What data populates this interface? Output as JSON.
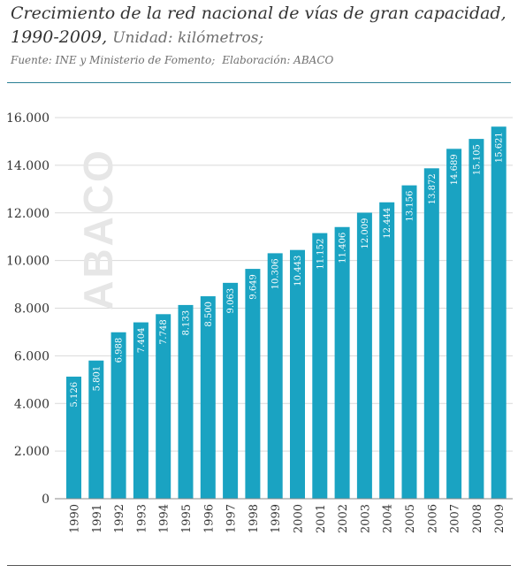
{
  "header": {
    "title": "Crecimiento de la red nacional de vías de gran capacidad, 1990-2009,",
    "unit": "Unidad: kilómetros;",
    "source": "Fuente: INE y Ministerio de Fomento;",
    "elaboration": "Elaboración: ABACO"
  },
  "watermark": "ABACO",
  "colors": {
    "bar": "#1aa3c2",
    "bar_label": "#ffffff",
    "grid": "#d9d9d9",
    "text": "#333333"
  },
  "chart_data": {
    "type": "bar",
    "categories": [
      "1990",
      "1991",
      "1992",
      "1993",
      "1994",
      "1995",
      "1996",
      "1997",
      "1998",
      "1999",
      "2000",
      "2001",
      "2002",
      "2003",
      "2004",
      "2005",
      "2006",
      "2007",
      "2008",
      "2009"
    ],
    "values": [
      5126,
      5801,
      6988,
      7404,
      7748,
      8133,
      8500,
      9063,
      9649,
      10306,
      10443,
      11152,
      11406,
      12009,
      12444,
      13156,
      13872,
      14689,
      15105,
      15621
    ],
    "value_labels": [
      "5.126",
      "5.801",
      "6.988",
      "7.404",
      "7.748",
      "8.133",
      "8.500",
      "9.063",
      "9.649",
      "10.306",
      "10.443",
      "11.152",
      "11.406",
      "12.009",
      "12.444",
      "13.156",
      "13.872",
      "14.689",
      "15.105",
      "15.621"
    ],
    "yticks": [
      0,
      2000,
      4000,
      6000,
      8000,
      10000,
      12000,
      14000,
      16000
    ],
    "ytick_labels": [
      "0",
      "2.000",
      "4.000",
      "6.000",
      "8.000",
      "10.000",
      "12.000",
      "14.000",
      "16.000"
    ],
    "ylim": [
      0,
      16000
    ],
    "grid": true,
    "xlabel": "",
    "ylabel": "",
    "legend": "none"
  }
}
